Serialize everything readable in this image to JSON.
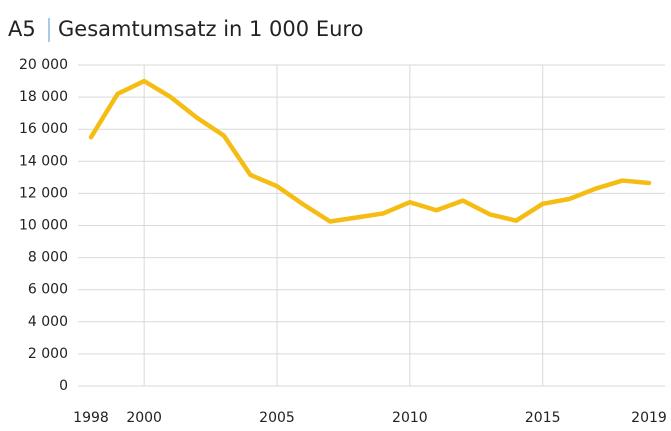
{
  "chart_data": {
    "type": "line",
    "title_prefix": "A5",
    "title": "Gesamtumsatz in 1 000 Euro",
    "x": [
      1998,
      1999,
      2000,
      2001,
      2002,
      2003,
      2004,
      2005,
      2006,
      2007,
      2008,
      2009,
      2010,
      2011,
      2012,
      2013,
      2014,
      2015,
      2016,
      2017,
      2018,
      2019
    ],
    "series": [
      {
        "name": "Gesamtumsatz",
        "color": "#f5bd14",
        "values": [
          15500,
          18200,
          19000,
          18000,
          16700,
          15600,
          13150,
          12450,
          11300,
          10250,
          10500,
          10750,
          11450,
          10950,
          11550,
          10700,
          10300,
          11350,
          11650,
          12300,
          12800,
          12650
        ]
      }
    ],
    "xlim": [
      1998,
      2019
    ],
    "xticks": [
      1998,
      2000,
      2005,
      2010,
      2015,
      2019
    ],
    "ylim": [
      0,
      20000
    ],
    "yticks": [
      0,
      {
        "value": 2000,
        "label": "2 000"
      },
      {
        "value": 4000,
        "label": "4 000"
      },
      {
        "value": 6000,
        "label": "6 000"
      },
      {
        "value": 8000,
        "label": "8 000"
      },
      {
        "value": 10000,
        "label": "10 000"
      },
      {
        "value": 12000,
        "label": "12 000"
      },
      {
        "value": 14000,
        "label": "14 000"
      },
      {
        "value": 16000,
        "label": "16 000"
      },
      {
        "value": 18000,
        "label": "18 000"
      },
      {
        "value": 20000,
        "label": "20 000"
      }
    ],
    "grid": true
  }
}
